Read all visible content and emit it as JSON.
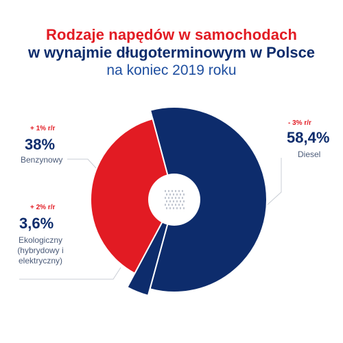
{
  "title": {
    "line1": "Rodzaje napędów w samochodach",
    "line2": "w wynajmie długoterminowym w Polsce",
    "line3": "na koniec 2019 roku"
  },
  "chart_data": {
    "type": "pie",
    "categories": [
      "Diesel",
      "Benzynowy",
      "Ekologiczny (hybrydowy i elektryczny)"
    ],
    "values": [
      58.4,
      38,
      3.6
    ],
    "value_labels": [
      "58,4%",
      "38%",
      "3,6%"
    ],
    "changes": [
      "- 3% r/r",
      "+ 1% r/r",
      "+ 2% r/r"
    ],
    "labels": [
      "Diesel",
      "Benzynowy",
      "Ekologiczny\n(hybrydowy i\nelektryczny)"
    ],
    "colors": [
      "#0d2c6c",
      "#e21b23",
      "#0d2c6c"
    ],
    "style": "donut"
  }
}
